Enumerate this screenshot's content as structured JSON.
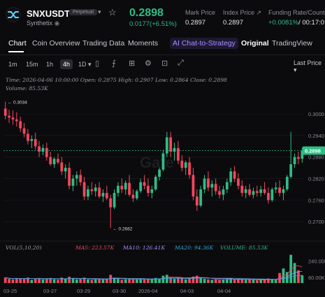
{
  "header": {
    "symbol": "SNXUSDT",
    "badge": "Perpetual",
    "name": "Synthetix",
    "last_price": "0.2898",
    "change": "0.0177(+6.51%)",
    "mark_label": "Mark Price",
    "mark_value": "0.2897",
    "index_label": "Index Price ↗",
    "index_value": "0.2897",
    "funding_label": "Funding Rate/Countdown",
    "funding_value": "+0.0081%",
    "countdown": "/ 00:17:0"
  },
  "tabs": [
    {
      "label": "Chart"
    },
    {
      "label": "Coin Overview"
    },
    {
      "label": "Trading Data"
    },
    {
      "label": "Moments"
    },
    {
      "label": "AI Chat-to-Strategy"
    },
    {
      "label": "Original"
    },
    {
      "label": "TradingView"
    }
  ],
  "timeframes": [
    "1m",
    "15m",
    "1h",
    "4h",
    "1D"
  ],
  "selected_timeframe": "4h",
  "last_price_label": "Last Price",
  "ohlc": {
    "line1": "Time: 2026-04-06 10:00:00   Open: 0.2875   High: 0.2907   Low: 0.2864   Close: 0.2898",
    "line2": "Volume: 85.53K"
  },
  "annotations": {
    "high": "← 0.3034",
    "low": "← 0.2682"
  },
  "current_price_tag": "0.2898",
  "watermark": "Gate",
  "volume_legend": {
    "title": "VOL(5,10,20)",
    "ma5": "MA5: 223.57K",
    "ma10": "MA10: 126.41K",
    "ma20": "MA20: 94.36K",
    "volume": "VOLUME: 85.53K"
  },
  "colors": {
    "up": "#2ebd85",
    "down": "#f6465d",
    "accent": "#7c5cff",
    "ma5": "#f6465d",
    "ma10": "#a88bff",
    "ma20": "#2fa8d5",
    "vol": "#2ebd85"
  },
  "chart_data": {
    "type": "candlestick",
    "price_ticks": [
      "0.3000",
      "0.2940",
      "0.2880",
      "0.2820",
      "0.2760",
      "0.2700"
    ],
    "ylim": [
      0.2675,
      0.3045
    ],
    "x_ticks": [
      "03-25",
      "03-27",
      "03-29",
      "03-30",
      "2026-04",
      "04-03",
      "04-04"
    ],
    "vol_ticks": [
      "240.00K",
      "60.00K"
    ],
    "vol_ylim": [
      0,
      330
    ],
    "candles": [
      [
        0.3015,
        0.3034,
        0.2985,
        0.2995,
        60
      ],
      [
        0.2995,
        0.3012,
        0.2975,
        0.299,
        45
      ],
      [
        0.299,
        0.301,
        0.297,
        0.2985,
        40
      ],
      [
        0.2985,
        0.3005,
        0.2965,
        0.298,
        55
      ],
      [
        0.298,
        0.2992,
        0.295,
        0.296,
        50
      ],
      [
        0.296,
        0.2975,
        0.2935,
        0.2945,
        45
      ],
      [
        0.2945,
        0.2958,
        0.2915,
        0.2925,
        60
      ],
      [
        0.2925,
        0.294,
        0.2905,
        0.293,
        35
      ],
      [
        0.293,
        0.2948,
        0.29,
        0.291,
        50
      ],
      [
        0.291,
        0.2925,
        0.288,
        0.2895,
        55
      ],
      [
        0.2895,
        0.2915,
        0.2885,
        0.2905,
        40
      ],
      [
        0.2905,
        0.292,
        0.287,
        0.288,
        45
      ],
      [
        0.288,
        0.2895,
        0.2855,
        0.286,
        55
      ],
      [
        0.286,
        0.288,
        0.285,
        0.2875,
        40
      ],
      [
        0.2875,
        0.289,
        0.286,
        0.2865,
        35
      ],
      [
        0.2865,
        0.288,
        0.283,
        0.284,
        60
      ],
      [
        0.284,
        0.286,
        0.282,
        0.285,
        45
      ],
      [
        0.285,
        0.2865,
        0.279,
        0.28,
        70
      ],
      [
        0.28,
        0.283,
        0.2785,
        0.282,
        50
      ],
      [
        0.282,
        0.284,
        0.28,
        0.283,
        40
      ],
      [
        0.283,
        0.2845,
        0.28,
        0.281,
        45
      ],
      [
        0.281,
        0.2825,
        0.276,
        0.277,
        60
      ],
      [
        0.277,
        0.28,
        0.276,
        0.279,
        40
      ],
      [
        0.279,
        0.281,
        0.2775,
        0.2785,
        35
      ],
      [
        0.2785,
        0.2805,
        0.277,
        0.2795,
        40
      ],
      [
        0.2795,
        0.281,
        0.2765,
        0.277,
        50
      ],
      [
        0.277,
        0.279,
        0.2755,
        0.278,
        40
      ],
      [
        0.278,
        0.28,
        0.276,
        0.2765,
        45
      ],
      [
        0.2765,
        0.2775,
        0.2682,
        0.274,
        90
      ],
      [
        0.274,
        0.279,
        0.2735,
        0.278,
        55
      ],
      [
        0.278,
        0.281,
        0.277,
        0.28,
        45
      ],
      [
        0.28,
        0.282,
        0.278,
        0.279,
        35
      ],
      [
        0.279,
        0.2815,
        0.2775,
        0.2808,
        40
      ],
      [
        0.2808,
        0.283,
        0.277,
        0.2775,
        45
      ],
      [
        0.2775,
        0.279,
        0.2755,
        0.2765,
        50
      ],
      [
        0.2765,
        0.279,
        0.276,
        0.2785,
        40
      ],
      [
        0.2785,
        0.282,
        0.278,
        0.281,
        45
      ],
      [
        0.281,
        0.283,
        0.279,
        0.28,
        40
      ],
      [
        0.28,
        0.282,
        0.277,
        0.278,
        45
      ],
      [
        0.278,
        0.28,
        0.2765,
        0.279,
        40
      ],
      [
        0.279,
        0.283,
        0.2785,
        0.2825,
        55
      ],
      [
        0.2825,
        0.285,
        0.2815,
        0.2845,
        50
      ],
      [
        0.2845,
        0.29,
        0.284,
        0.289,
        80
      ],
      [
        0.289,
        0.295,
        0.288,
        0.2935,
        90
      ],
      [
        0.2935,
        0.295,
        0.288,
        0.2895,
        60
      ],
      [
        0.2895,
        0.292,
        0.287,
        0.2905,
        45
      ],
      [
        0.2905,
        0.2925,
        0.286,
        0.287,
        55
      ],
      [
        0.287,
        0.2885,
        0.284,
        0.285,
        50
      ],
      [
        0.285,
        0.287,
        0.283,
        0.2865,
        40
      ],
      [
        0.2865,
        0.288,
        0.282,
        0.283,
        55
      ],
      [
        0.283,
        0.285,
        0.276,
        0.277,
        70
      ],
      [
        0.277,
        0.279,
        0.273,
        0.2745,
        80
      ],
      [
        0.2745,
        0.28,
        0.274,
        0.279,
        55
      ],
      [
        0.279,
        0.283,
        0.278,
        0.282,
        45
      ],
      [
        0.282,
        0.284,
        0.2785,
        0.2795,
        40
      ],
      [
        0.2795,
        0.2815,
        0.277,
        0.2805,
        35
      ],
      [
        0.2805,
        0.282,
        0.2775,
        0.2785,
        40
      ],
      [
        0.2785,
        0.28,
        0.2765,
        0.2775,
        35
      ],
      [
        0.2775,
        0.28,
        0.276,
        0.279,
        40
      ],
      [
        0.279,
        0.282,
        0.278,
        0.281,
        45
      ],
      [
        0.281,
        0.285,
        0.28,
        0.284,
        55
      ],
      [
        0.284,
        0.2855,
        0.281,
        0.282,
        40
      ],
      [
        0.282,
        0.2835,
        0.279,
        0.28,
        45
      ],
      [
        0.28,
        0.2815,
        0.277,
        0.278,
        40
      ],
      [
        0.278,
        0.28,
        0.2765,
        0.279,
        35
      ],
      [
        0.279,
        0.2805,
        0.277,
        0.2775,
        40
      ],
      [
        0.2775,
        0.2795,
        0.2765,
        0.2785,
        35
      ],
      [
        0.2785,
        0.28,
        0.277,
        0.278,
        30
      ],
      [
        0.278,
        0.28,
        0.277,
        0.279,
        35
      ],
      [
        0.279,
        0.281,
        0.2775,
        0.278,
        40
      ],
      [
        0.278,
        0.2795,
        0.275,
        0.276,
        50
      ],
      [
        0.276,
        0.2795,
        0.2755,
        0.279,
        45
      ],
      [
        0.279,
        0.281,
        0.278,
        0.2795,
        35
      ],
      [
        0.2795,
        0.2815,
        0.277,
        0.278,
        110
      ],
      [
        0.278,
        0.28,
        0.276,
        0.279,
        160
      ],
      [
        0.279,
        0.283,
        0.2785,
        0.2825,
        120
      ],
      [
        0.2825,
        0.295,
        0.282,
        0.286,
        310
      ],
      [
        0.286,
        0.289,
        0.285,
        0.288,
        220
      ],
      [
        0.288,
        0.2895,
        0.286,
        0.2875,
        140
      ],
      [
        0.2875,
        0.2907,
        0.2864,
        0.2898,
        86
      ]
    ]
  }
}
